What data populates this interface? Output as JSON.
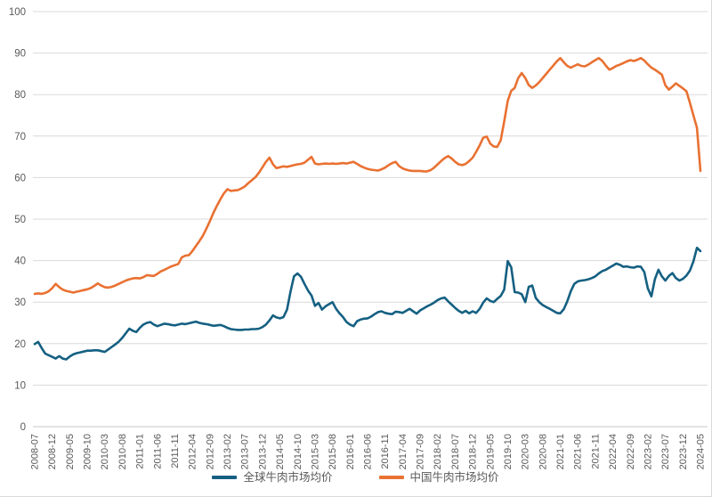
{
  "chart_data": {
    "type": "line",
    "title": "",
    "xlabel": "",
    "ylabel": "",
    "ylim": [
      0,
      100
    ],
    "y_ticks": [
      0,
      10,
      20,
      30,
      40,
      50,
      60,
      70,
      80,
      90,
      100
    ],
    "grid": "horizontal",
    "legend_position": "bottom",
    "x_unit": "month",
    "x_start": "2008-07",
    "x_end": "2024-05",
    "x_tick_every": 5,
    "x_tick_labels": [
      "2008-07",
      "2008-12",
      "2009-05",
      "2009-10",
      "2010-03",
      "2010-08",
      "2011-01",
      "2011-06",
      "2011-11",
      "2012-04",
      "2012-09",
      "2013-02",
      "2013-07",
      "2013-12",
      "2014-05",
      "2014-10",
      "2015-03",
      "2015-08",
      "2016-01",
      "2016-06",
      "2016-11",
      "2017-04",
      "2017-09",
      "2018-02",
      "2018-07",
      "2018-12",
      "2019-05",
      "2019-10",
      "2020-03",
      "2020-08",
      "2021-01",
      "2021-06",
      "2021-11",
      "2022-04",
      "2022-09",
      "2023-02",
      "2023-07",
      "2023-12",
      "2024-05"
    ],
    "colors": {
      "background": "#FFFFFF",
      "gridline": "#D9D9D9",
      "axis_line": "#C6C6C6",
      "tick_label": "#595959",
      "legend_text": "#595959"
    },
    "series": [
      {
        "name": "全球牛肉市场均价",
        "color": "#156082",
        "values": [
          19.9,
          20.4,
          18.9,
          17.6,
          17.2,
          16.8,
          16.4,
          17.0,
          16.4,
          16.2,
          16.9,
          17.4,
          17.7,
          17.9,
          18.1,
          18.3,
          18.3,
          18.4,
          18.4,
          18.2,
          18.0,
          18.6,
          19.2,
          19.8,
          20.5,
          21.4,
          22.5,
          23.6,
          23.1,
          22.8,
          23.8,
          24.6,
          25.0,
          25.2,
          24.6,
          24.2,
          24.5,
          24.8,
          24.7,
          24.5,
          24.4,
          24.6,
          24.8,
          24.7,
          24.9,
          25.1,
          25.3,
          25.0,
          24.8,
          24.7,
          24.5,
          24.3,
          24.4,
          24.5,
          24.2,
          23.8,
          23.5,
          23.4,
          23.3,
          23.3,
          23.4,
          23.4,
          23.5,
          23.5,
          23.6,
          24.0,
          24.6,
          25.6,
          26.8,
          26.3,
          26.1,
          26.4,
          28.2,
          32.5,
          36.2,
          36.9,
          36.1,
          34.4,
          32.8,
          31.6,
          29.1,
          29.8,
          28.2,
          29.0,
          29.5,
          30.0,
          28.4,
          27.3,
          26.4,
          25.2,
          24.6,
          24.2,
          25.4,
          25.8,
          26.0,
          26.1,
          26.5,
          27.1,
          27.6,
          27.8,
          27.4,
          27.2,
          27.1,
          27.7,
          27.6,
          27.4,
          27.9,
          28.4,
          27.8,
          27.2,
          28.0,
          28.5,
          29.0,
          29.4,
          29.9,
          30.5,
          30.9,
          31.1,
          30.2,
          29.4,
          28.6,
          27.9,
          27.4,
          27.9,
          27.3,
          27.8,
          27.4,
          28.4,
          29.9,
          30.9,
          30.3,
          30.0,
          30.8,
          31.5,
          33.0,
          39.9,
          38.4,
          32.4,
          32.3,
          31.9,
          30.0,
          33.7,
          34.0,
          31.0,
          30.0,
          29.3,
          28.8,
          28.4,
          27.9,
          27.4,
          27.3,
          28.3,
          30.2,
          32.6,
          34.4,
          35.0,
          35.2,
          35.3,
          35.5,
          35.8,
          36.2,
          36.9,
          37.5,
          37.8,
          38.3,
          38.8,
          39.3,
          39.0,
          38.5,
          38.6,
          38.4,
          38.3,
          38.6,
          38.5,
          37.2,
          33.3,
          31.4,
          35.5,
          37.8,
          36.2,
          35.2,
          36.3,
          37.0,
          35.8,
          35.2,
          35.6,
          36.4,
          37.6,
          39.8,
          43.1,
          42.3
        ]
      },
      {
        "name": "中国牛肉市场均价",
        "color": "#E97132",
        "values": [
          32.0,
          32.1,
          32.0,
          32.2,
          32.6,
          33.4,
          34.4,
          33.6,
          33.0,
          32.7,
          32.5,
          32.3,
          32.5,
          32.7,
          32.9,
          33.1,
          33.4,
          33.9,
          34.5,
          34.0,
          33.6,
          33.5,
          33.7,
          34.0,
          34.4,
          34.8,
          35.2,
          35.5,
          35.7,
          35.8,
          35.7,
          36.0,
          36.5,
          36.4,
          36.3,
          36.8,
          37.4,
          37.8,
          38.2,
          38.6,
          38.9,
          39.2,
          40.8,
          41.2,
          41.3,
          42.3,
          43.5,
          44.7,
          46.0,
          47.7,
          49.5,
          51.5,
          53.2,
          54.8,
          56.2,
          57.2,
          56.8,
          56.9,
          57.0,
          57.4,
          57.9,
          58.7,
          59.4,
          60.1,
          61.2,
          62.5,
          63.8,
          64.8,
          63.2,
          62.3,
          62.5,
          62.7,
          62.6,
          62.8,
          63.0,
          63.2,
          63.3,
          63.6,
          64.3,
          65.0,
          63.4,
          63.2,
          63.3,
          63.4,
          63.3,
          63.4,
          63.3,
          63.4,
          63.5,
          63.4,
          63.6,
          63.8,
          63.3,
          62.8,
          62.4,
          62.1,
          61.9,
          61.8,
          61.7,
          62.0,
          62.4,
          63.0,
          63.5,
          63.8,
          62.8,
          62.2,
          61.9,
          61.7,
          61.6,
          61.6,
          61.6,
          61.5,
          61.5,
          61.8,
          62.4,
          63.2,
          64.0,
          64.7,
          65.2,
          64.6,
          63.8,
          63.2,
          63.0,
          63.3,
          64.0,
          64.8,
          66.2,
          67.8,
          69.6,
          69.9,
          68.2,
          67.5,
          67.4,
          69.0,
          73.5,
          78.5,
          80.9,
          81.6,
          84.0,
          85.2,
          84.0,
          82.3,
          81.6,
          82.2,
          83.0,
          84.0,
          85.0,
          86.0,
          87.0,
          88.0,
          88.8,
          87.8,
          86.9,
          86.5,
          86.9,
          87.3,
          86.9,
          86.8,
          87.2,
          87.8,
          88.3,
          88.8,
          88.1,
          87.0,
          86.0,
          86.4,
          86.9,
          87.2,
          87.6,
          88.0,
          88.3,
          88.1,
          88.4,
          88.8,
          88.2,
          87.3,
          86.5,
          86.0,
          85.4,
          84.8,
          82.2,
          81.2,
          81.9,
          82.7,
          82.1,
          81.5,
          80.8,
          78.0,
          75.0,
          72.0,
          61.6
        ]
      }
    ]
  },
  "legend": {
    "items": [
      {
        "label": "全球牛肉市场均价"
      },
      {
        "label": "中国牛肉市场均价"
      }
    ]
  }
}
